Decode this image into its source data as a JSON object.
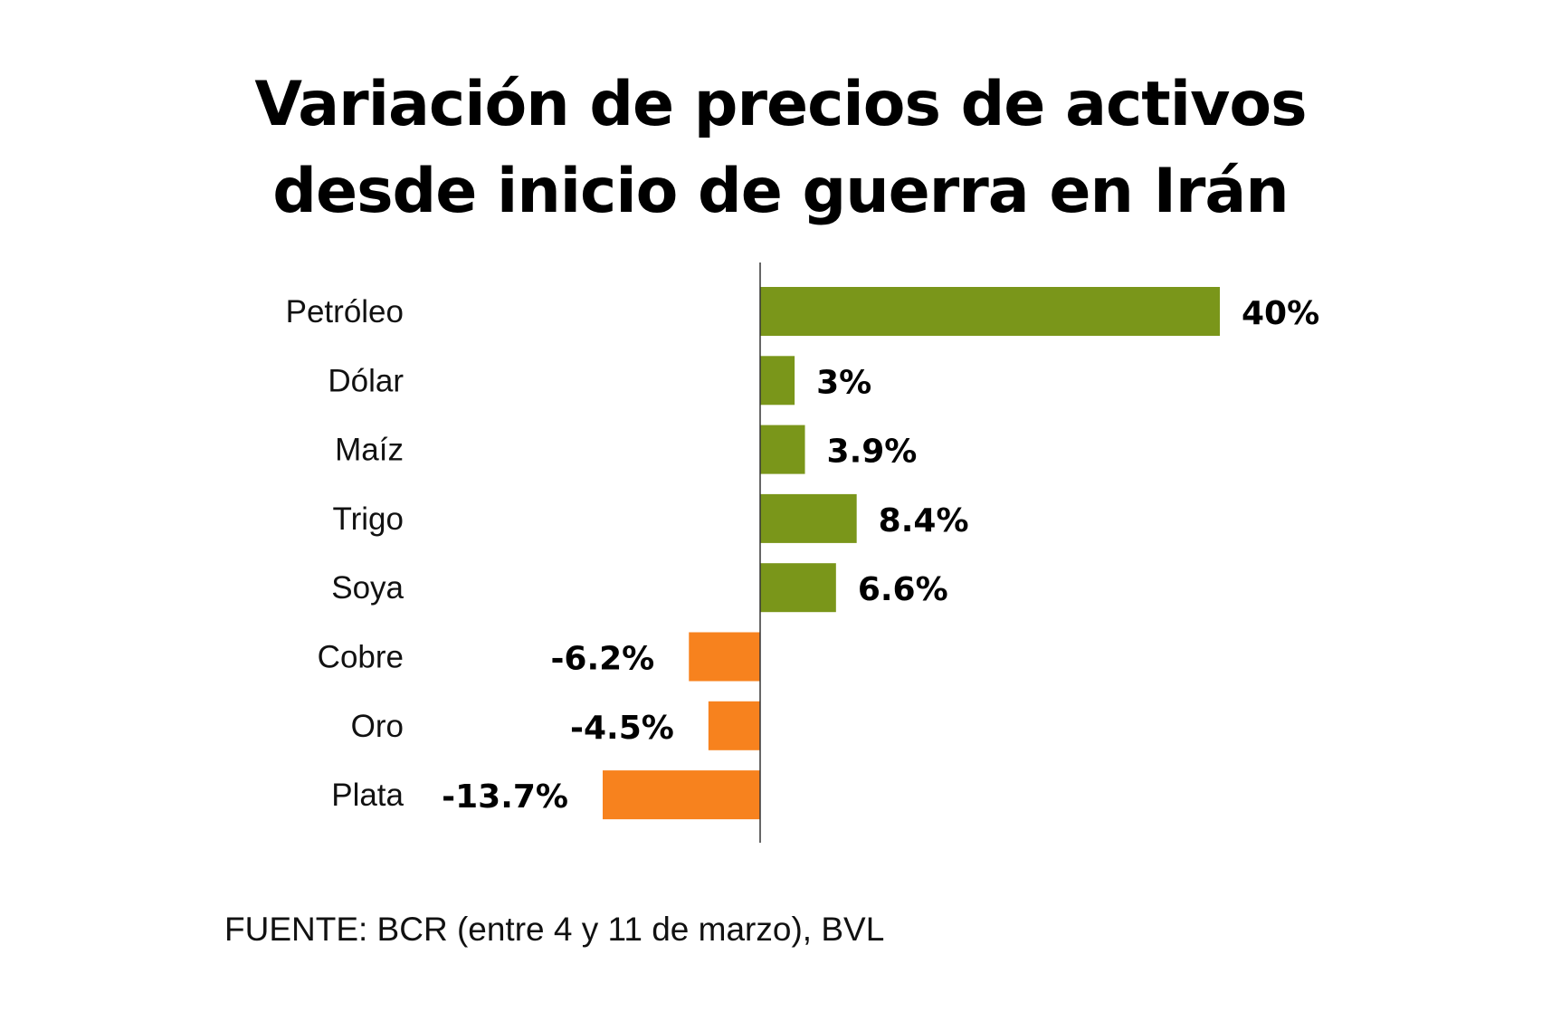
{
  "chart_data": {
    "type": "bar",
    "orientation": "horizontal",
    "title_lines": [
      "Variación de precios de activos",
      "desde inicio de guerra en Irán"
    ],
    "categories": [
      "Petróleo",
      "Dólar",
      "Maíz",
      "Trigo",
      "Soya",
      "Cobre",
      "Oro",
      "Plata"
    ],
    "values": [
      40,
      3,
      3.9,
      8.4,
      6.6,
      -6.2,
      -4.5,
      -13.7
    ],
    "data_labels": [
      "40%",
      "3%",
      "3.9%",
      "8.4%",
      "6.6%",
      "-6.2%",
      "-4.5%",
      "-13.7%"
    ],
    "xlabel": "",
    "ylabel": "",
    "grid": false,
    "colors": {
      "positive": "#7a961a",
      "negative": "#f7821e"
    },
    "source": "FUENTE: BCR (entre 4 y 11 de marzo), BVL"
  }
}
